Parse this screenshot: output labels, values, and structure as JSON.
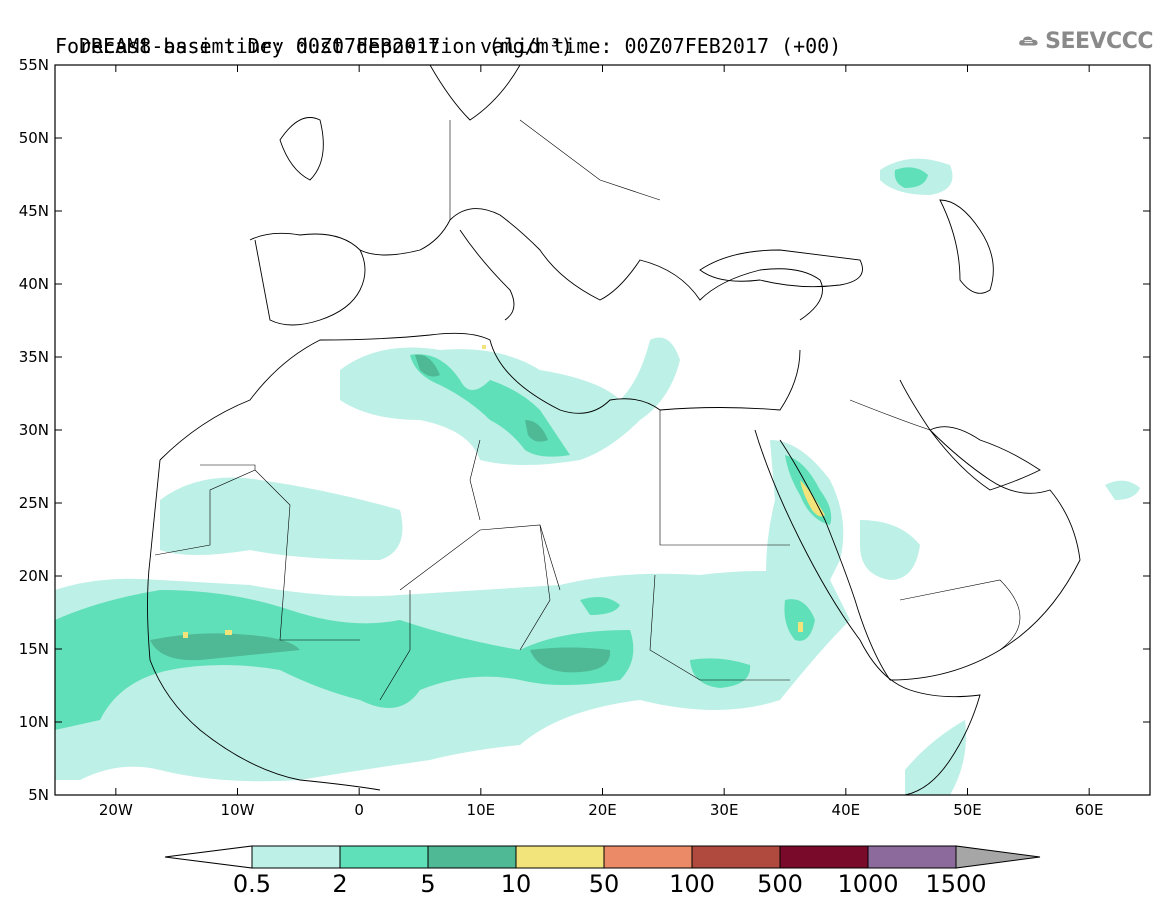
{
  "title": {
    "line1": "DREAM8-assim: Dry dust deposition (mg/m³)",
    "line2": "Forecast base time: 00Z07FEB2017",
    "valid": "valid time: 00Z07FEB2017 (+00)"
  },
  "logo": {
    "text": "SEEVCCC",
    "icon": "cloud-icon"
  },
  "map": {
    "lon_range": [
      -25,
      65
    ],
    "lat_range": [
      5,
      55
    ],
    "lat_ticks": [
      "55N",
      "50N",
      "45N",
      "40N",
      "35N",
      "30N",
      "25N",
      "20N",
      "15N",
      "10N",
      "5N"
    ],
    "lat_values": [
      55,
      50,
      45,
      40,
      35,
      30,
      25,
      20,
      15,
      10,
      5
    ],
    "lon_ticks": [
      "20W",
      "10W",
      "0",
      "10E",
      "20E",
      "30E",
      "40E",
      "50E",
      "60E"
    ],
    "lon_values": [
      -20,
      -10,
      0,
      10,
      20,
      30,
      40,
      50,
      60
    ]
  },
  "colorbar": {
    "labels": [
      "0.5",
      "2",
      "5",
      "10",
      "50",
      "100",
      "500",
      "1000",
      "1500"
    ],
    "colors": [
      "#ffffff",
      "#bdf0e6",
      "#5fe0b8",
      "#4fb894",
      "#f2e47a",
      "#ea8a66",
      "#b04a3e",
      "#7a0a2a",
      "#8c6a9c",
      "#a6a6a6"
    ]
  },
  "levels_colors": {
    "l1": "#bdf0e6",
    "l2": "#5fe0b8",
    "l3": "#4fb894",
    "l4": "#f2e47a"
  }
}
